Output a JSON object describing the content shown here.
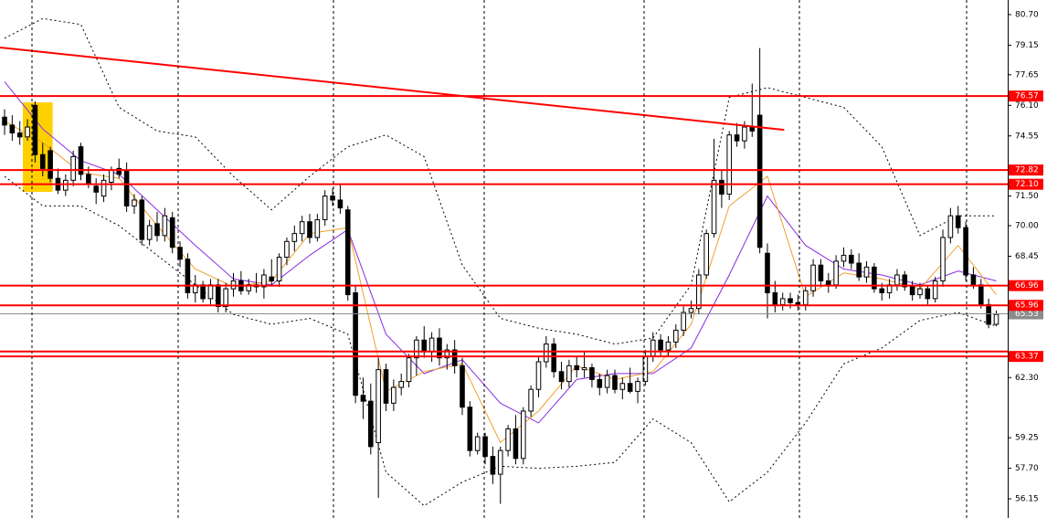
{
  "chart_data": {
    "type": "candlestick",
    "xlim": [
      -0.6,
      131.5
    ],
    "ylim": [
      55.18,
      81.44
    ],
    "yticks": [
      {
        "value": 80.7,
        "label": "80.70"
      },
      {
        "value": 79.15,
        "label": "79.15"
      },
      {
        "value": 77.65,
        "label": "77.65"
      },
      {
        "value": 76.1,
        "label": "76.10"
      },
      {
        "value": 74.55,
        "label": "74.55"
      },
      {
        "value": 71.5,
        "label": "71.50"
      },
      {
        "value": 70.0,
        "label": "70.00"
      },
      {
        "value": 68.45,
        "label": "68.45"
      },
      {
        "value": 62.3,
        "label": "62.30"
      },
      {
        "value": 59.25,
        "label": "59.25"
      },
      {
        "value": 57.7,
        "label": "57.70"
      },
      {
        "value": 56.15,
        "label": "56.15"
      }
    ],
    "ohlc": [
      [
        75.5,
        75.9,
        74.6,
        75.1
      ],
      [
        75.1,
        75.6,
        74.3,
        74.7
      ],
      [
        74.7,
        75.3,
        74.1,
        74.5
      ],
      [
        74.5,
        75.4,
        74.3,
        75.0
      ],
      [
        76.1,
        76.3,
        73.2,
        73.6
      ],
      [
        73.6,
        74.2,
        72.5,
        72.9
      ],
      [
        73.8,
        74.0,
        72.2,
        72.4
      ],
      [
        72.4,
        72.9,
        71.6,
        71.8
      ],
      [
        71.8,
        72.6,
        71.5,
        72.3
      ],
      [
        72.3,
        73.8,
        72.0,
        73.5
      ],
      [
        74.0,
        74.2,
        72.3,
        72.6
      ],
      [
        72.6,
        73.0,
        71.9,
        72.1
      ],
      [
        72.0,
        72.4,
        71.1,
        71.7
      ],
      [
        71.5,
        72.6,
        71.2,
        72.3
      ],
      [
        72.2,
        73.0,
        71.8,
        72.8
      ],
      [
        72.9,
        73.4,
        72.4,
        72.6
      ],
      [
        72.8,
        73.2,
        70.7,
        71.0
      ],
      [
        71.0,
        71.6,
        70.6,
        71.3
      ],
      [
        71.3,
        71.5,
        69.0,
        69.3
      ],
      [
        69.3,
        70.3,
        69.0,
        70.0
      ],
      [
        70.1,
        70.7,
        69.2,
        69.5
      ],
      [
        69.5,
        70.9,
        69.2,
        70.5
      ],
      [
        70.4,
        70.7,
        68.6,
        68.9
      ],
      [
        68.9,
        69.2,
        67.9,
        68.3
      ],
      [
        68.3,
        68.6,
        66.3,
        66.6
      ],
      [
        66.6,
        67.5,
        66.1,
        67.0
      ],
      [
        67.0,
        67.2,
        66.1,
        66.3
      ],
      [
        66.3,
        67.3,
        66.0,
        67.0
      ],
      [
        67.0,
        67.3,
        65.6,
        65.9
      ],
      [
        65.9,
        67.1,
        65.6,
        66.8
      ],
      [
        66.8,
        67.6,
        66.4,
        67.2
      ],
      [
        67.2,
        67.7,
        66.5,
        66.7
      ],
      [
        66.7,
        67.3,
        66.5,
        67.0
      ],
      [
        67.0,
        67.6,
        66.6,
        66.9
      ],
      [
        66.9,
        67.8,
        66.3,
        67.5
      ],
      [
        67.4,
        68.3,
        67.0,
        67.2
      ],
      [
        67.2,
        68.6,
        66.9,
        68.4
      ],
      [
        68.4,
        69.4,
        68.0,
        69.2
      ],
      [
        69.2,
        70.0,
        68.7,
        69.6
      ],
      [
        69.6,
        70.5,
        69.2,
        70.2
      ],
      [
        70.2,
        70.6,
        69.1,
        69.4
      ],
      [
        69.4,
        70.6,
        69.2,
        70.3
      ],
      [
        70.3,
        71.8,
        70.0,
        71.5
      ],
      [
        71.5,
        71.9,
        71.0,
        71.3
      ],
      [
        71.3,
        72.1,
        70.6,
        70.9
      ],
      [
        70.8,
        71.0,
        66.2,
        66.5
      ],
      [
        66.6,
        67.0,
        61.0,
        61.4
      ],
      [
        61.4,
        62.3,
        60.2,
        61.1
      ],
      [
        61.1,
        62.0,
        58.4,
        58.8
      ],
      [
        59.0,
        63.3,
        56.2,
        62.7
      ],
      [
        62.7,
        63.0,
        60.6,
        61.0
      ],
      [
        61.0,
        62.2,
        60.6,
        61.8
      ],
      [
        61.8,
        62.5,
        61.4,
        62.1
      ],
      [
        62.1,
        63.5,
        61.8,
        63.3
      ],
      [
        63.3,
        64.4,
        62.4,
        64.2
      ],
      [
        64.2,
        64.9,
        63.3,
        63.6
      ],
      [
        63.6,
        64.6,
        63.1,
        64.3
      ],
      [
        64.3,
        64.8,
        62.9,
        63.3
      ],
      [
        63.3,
        64.0,
        62.7,
        63.7
      ],
      [
        63.7,
        64.2,
        62.5,
        62.9
      ],
      [
        62.9,
        63.3,
        60.4,
        60.8
      ],
      [
        60.8,
        61.1,
        58.3,
        58.6
      ],
      [
        58.6,
        59.5,
        58.4,
        59.3
      ],
      [
        59.3,
        59.5,
        57.9,
        58.3
      ],
      [
        58.3,
        58.8,
        56.9,
        57.4
      ],
      [
        57.4,
        58.8,
        55.9,
        58.6
      ],
      [
        58.6,
        59.9,
        58.3,
        59.7
      ],
      [
        59.7,
        60.4,
        57.9,
        58.2
      ],
      [
        58.2,
        60.8,
        57.9,
        60.6
      ],
      [
        60.6,
        61.9,
        60.3,
        61.7
      ],
      [
        61.7,
        63.4,
        61.3,
        63.1
      ],
      [
        63.1,
        64.4,
        62.8,
        64.0
      ],
      [
        64.0,
        64.3,
        62.3,
        62.6
      ],
      [
        62.6,
        63.1,
        61.7,
        62.1
      ],
      [
        62.1,
        63.2,
        61.8,
        62.9
      ],
      [
        62.9,
        63.4,
        62.3,
        62.7
      ],
      [
        62.7,
        63.6,
        62.3,
        62.8
      ],
      [
        62.8,
        63.0,
        61.8,
        62.2
      ],
      [
        62.2,
        62.5,
        61.4,
        61.8
      ],
      [
        61.8,
        62.7,
        61.5,
        62.4
      ],
      [
        62.4,
        62.7,
        61.5,
        61.7
      ],
      [
        61.7,
        62.3,
        61.2,
        62.0
      ],
      [
        62.0,
        62.8,
        61.5,
        61.6
      ],
      [
        61.6,
        62.3,
        61.0,
        62.1
      ],
      [
        62.1,
        63.7,
        61.9,
        63.4
      ],
      [
        63.4,
        64.6,
        63.1,
        64.2
      ],
      [
        64.2,
        64.5,
        63.4,
        63.7
      ],
      [
        63.7,
        64.4,
        63.4,
        64.1
      ],
      [
        64.1,
        65.0,
        63.8,
        64.7
      ],
      [
        64.7,
        65.9,
        64.4,
        65.6
      ],
      [
        65.6,
        66.2,
        65.3,
        65.8
      ],
      [
        65.8,
        67.8,
        65.5,
        67.5
      ],
      [
        67.5,
        69.8,
        67.3,
        69.6
      ],
      [
        69.6,
        74.4,
        69.4,
        72.3
      ],
      [
        72.3,
        72.8,
        70.9,
        71.6
      ],
      [
        71.6,
        74.8,
        71.3,
        74.6
      ],
      [
        74.6,
        75.2,
        74.0,
        74.3
      ],
      [
        74.3,
        75.3,
        73.9,
        75.0
      ],
      [
        75.0,
        77.2,
        74.5,
        74.8
      ],
      [
        75.6,
        79.0,
        68.6,
        68.9
      ],
      [
        68.6,
        69.1,
        65.3,
        66.6
      ],
      [
        66.6,
        67.2,
        65.6,
        66.0
      ],
      [
        66.0,
        66.6,
        65.7,
        66.3
      ],
      [
        66.3,
        66.6,
        65.8,
        66.1
      ],
      [
        66.1,
        66.5,
        65.7,
        66.0
      ],
      [
        66.0,
        66.9,
        65.7,
        66.7
      ],
      [
        66.7,
        68.3,
        66.4,
        68.0
      ],
      [
        68.0,
        68.3,
        66.9,
        67.2
      ],
      [
        67.2,
        67.6,
        66.6,
        67.0
      ],
      [
        67.0,
        68.5,
        66.8,
        68.2
      ],
      [
        68.2,
        68.9,
        67.9,
        68.5
      ],
      [
        68.5,
        68.8,
        67.8,
        68.1
      ],
      [
        68.1,
        68.6,
        67.2,
        67.4
      ],
      [
        67.4,
        68.2,
        67.1,
        67.9
      ],
      [
        67.9,
        68.1,
        66.6,
        66.8
      ],
      [
        66.8,
        67.1,
        66.2,
        66.6
      ],
      [
        66.6,
        67.3,
        66.3,
        67.0
      ],
      [
        67.0,
        67.8,
        66.7,
        67.5
      ],
      [
        67.5,
        67.7,
        66.7,
        66.9
      ],
      [
        66.9,
        67.2,
        66.2,
        66.5
      ],
      [
        66.5,
        67.1,
        66.3,
        66.8
      ],
      [
        66.8,
        67.0,
        66.0,
        66.3
      ],
      [
        66.3,
        67.4,
        66.1,
        67.2
      ],
      [
        67.2,
        69.8,
        66.9,
        69.4
      ],
      [
        69.4,
        70.9,
        69.1,
        70.5
      ],
      [
        70.5,
        71.0,
        69.6,
        69.9
      ],
      [
        69.9,
        70.2,
        67.2,
        67.5
      ],
      [
        67.5,
        67.9,
        66.8,
        67.0
      ],
      [
        67.0,
        67.3,
        65.8,
        66.0
      ],
      [
        66.0,
        66.3,
        64.8,
        65.0
      ],
      [
        65.0,
        65.7,
        64.9,
        65.5
      ]
    ],
    "series": [
      {
        "color": "#8a2be2",
        "x": [
          0,
          5,
          10,
          15,
          20,
          25,
          30,
          35,
          40,
          45,
          50,
          55,
          60,
          65,
          70,
          75,
          80,
          85,
          90,
          95,
          100,
          105,
          110,
          115,
          120,
          125,
          130
        ],
        "values": [
          77.3,
          74.9,
          73.3,
          72.6,
          70.8,
          69.0,
          67.3,
          67.0,
          68.5,
          69.8,
          64.5,
          62.5,
          63.2,
          61.0,
          60.0,
          62.2,
          62.5,
          62.5,
          63.8,
          67.5,
          71.5,
          69.0,
          67.8,
          67.5,
          67.0,
          67.7,
          67.2
        ]
      },
      {
        "color": "#f0a030",
        "x": [
          0,
          5,
          10,
          15,
          20,
          25,
          30,
          35,
          40,
          45,
          50,
          55,
          60,
          65,
          70,
          75,
          80,
          85,
          90,
          95,
          100,
          105,
          110,
          115,
          120,
          125,
          130
        ],
        "values": [
          75.3,
          74.2,
          72.7,
          72.4,
          70.0,
          67.8,
          66.9,
          67.2,
          69.6,
          69.9,
          61.6,
          62.6,
          63.0,
          59.0,
          60.6,
          62.9,
          62.2,
          62.6,
          65.0,
          71.0,
          72.5,
          66.4,
          67.6,
          67.3,
          66.8,
          69.0,
          66.5
        ]
      },
      {
        "color": "#000000",
        "dashed": true,
        "x": [
          0,
          5,
          10,
          15,
          20,
          25,
          30,
          35,
          40,
          45,
          50,
          55,
          60,
          65,
          70,
          75,
          80,
          85,
          90,
          95,
          100,
          105,
          110,
          115,
          120,
          125,
          130
        ],
        "values": [
          79.5,
          80.5,
          80.2,
          76.0,
          74.8,
          74.5,
          72.5,
          70.8,
          72.5,
          74.0,
          74.6,
          73.5,
          68.0,
          65.3,
          64.8,
          64.5,
          64.0,
          64.3,
          67.0,
          76.5,
          77.0,
          76.5,
          76.0,
          74.0,
          69.5,
          70.5,
          70.5
        ]
      },
      {
        "color": "#000000",
        "dashed": true,
        "x": [
          0,
          5,
          10,
          15,
          20,
          25,
          30,
          35,
          40,
          45,
          50,
          55,
          60,
          65,
          70,
          75,
          80,
          85,
          90,
          95,
          100,
          105,
          110,
          115,
          120,
          125,
          130
        ],
        "values": [
          72.5,
          71.0,
          71.0,
          70.0,
          68.5,
          67.0,
          65.5,
          65.0,
          65.3,
          64.5,
          57.5,
          55.8,
          57.0,
          57.8,
          57.7,
          57.8,
          58.0,
          60.2,
          59.0,
          56.0,
          57.5,
          60.0,
          63.0,
          63.8,
          65.2,
          65.6,
          64.9
        ]
      }
    ],
    "levels": [
      {
        "value": 76.57,
        "label": "76.57"
      },
      {
        "value": 72.82,
        "label": "72.82"
      },
      {
        "value": 72.1,
        "label": "72.10"
      },
      {
        "value": 66.96,
        "label": "66.96"
      },
      {
        "value": 65.96,
        "label": "65.96"
      },
      {
        "value": 63.62
      },
      {
        "value": 63.37,
        "label": "63.37"
      }
    ],
    "level_color": "#ff0000",
    "current_price": {
      "value": 65.53,
      "label": "65.53",
      "color": "#8c8c8c"
    },
    "trendline": {
      "x": [
        -0.6,
        102.2
      ],
      "values": [
        79.03,
        74.86
      ],
      "color": "#ff0000"
    },
    "highlight": {
      "x": [
        2.4,
        6.3
      ],
      "values": [
        76.25,
        71.71
      ],
      "color": "#ffd000"
    }
  }
}
